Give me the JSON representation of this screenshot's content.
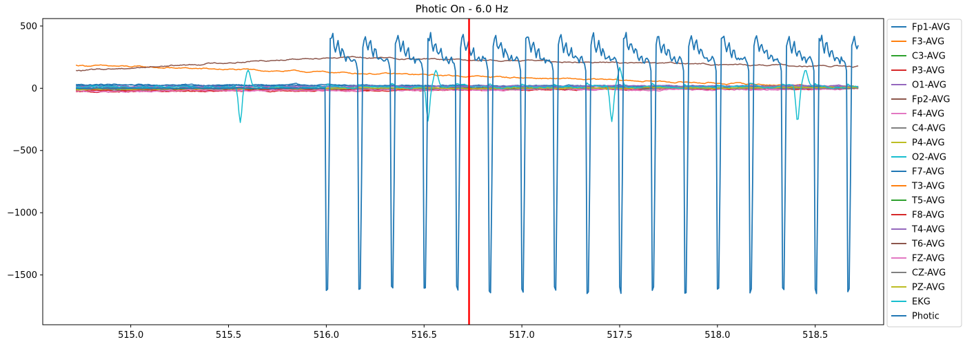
{
  "chart_data": {
    "type": "line",
    "title": "Photic On - 6.0 Hz",
    "xlabel": "",
    "ylabel": "",
    "xlim": [
      514.55,
      518.85
    ],
    "ylim": [
      -1900,
      560
    ],
    "x_ticks": [
      515.0,
      515.5,
      516.0,
      516.5,
      517.0,
      517.5,
      518.0,
      518.5
    ],
    "x_tick_labels": [
      "515.0",
      "515.5",
      "516.0",
      "516.5",
      "517.0",
      "517.5",
      "518.0",
      "518.5"
    ],
    "y_ticks": [
      500,
      0,
      -500,
      -1000,
      -1500
    ],
    "y_tick_labels": [
      "500",
      "0",
      "−500",
      "−1000",
      "−1500"
    ],
    "grid": false,
    "legend_placement": "outside-right",
    "marker_line": {
      "x": 516.73,
      "color": "#ff0000"
    },
    "x_start": 514.72,
    "x_end": 518.72,
    "photic_onset": 516.0,
    "photic_frequency_hz": 6.0,
    "series": [
      {
        "name": "Fp1-AVG",
        "color": "#1f77b4",
        "baseline": 30,
        "drift": -20,
        "noise": 8
      },
      {
        "name": "F3-AVG",
        "color": "#ff7f0e",
        "baseline": 185,
        "drift": -175,
        "noise": 8
      },
      {
        "name": "C3-AVG",
        "color": "#2ca02c",
        "baseline": -10,
        "drift": 10,
        "noise": 6
      },
      {
        "name": "P3-AVG",
        "color": "#d62728",
        "baseline": -30,
        "drift": 30,
        "noise": 6
      },
      {
        "name": "O1-AVG",
        "color": "#9467bd",
        "baseline": 15,
        "drift": 5,
        "noise": 7
      },
      {
        "name": "Fp2-AVG",
        "color": "#8c564b",
        "baseline": 140,
        "drift": 0,
        "noise": 8,
        "peak": 250,
        "peak_x": 516.0
      },
      {
        "name": "F4-AVG",
        "color": "#e377c2",
        "baseline": -20,
        "drift": 10,
        "noise": 8
      },
      {
        "name": "C4-AVG",
        "color": "#7f7f7f",
        "baseline": -15,
        "drift": 20,
        "noise": 5
      },
      {
        "name": "P4-AVG",
        "color": "#bcbd22",
        "baseline": -10,
        "drift": 15,
        "noise": 5
      },
      {
        "name": "O2-AVG",
        "color": "#17becf",
        "baseline": 5,
        "drift": 5,
        "noise": 10
      },
      {
        "name": "F7-AVG",
        "color": "#1f77b4",
        "baseline": 25,
        "drift": -10,
        "noise": 6
      },
      {
        "name": "T3-AVG",
        "color": "#ff7f0e",
        "baseline": -5,
        "drift": 10,
        "noise": 6
      },
      {
        "name": "T5-AVG",
        "color": "#2ca02c",
        "baseline": -5,
        "drift": 5,
        "noise": 5
      },
      {
        "name": "F8-AVG",
        "color": "#d62728",
        "baseline": -20,
        "drift": 20,
        "noise": 6
      },
      {
        "name": "T4-AVG",
        "color": "#9467bd",
        "baseline": 10,
        "drift": 10,
        "noise": 6
      },
      {
        "name": "T6-AVG",
        "color": "#8c564b",
        "baseline": 0,
        "drift": 0,
        "noise": 5
      },
      {
        "name": "FZ-AVG",
        "color": "#e377c2",
        "baseline": -25,
        "drift": 25,
        "noise": 7
      },
      {
        "name": "CZ-AVG",
        "color": "#7f7f7f",
        "baseline": -5,
        "drift": 5,
        "noise": 5
      },
      {
        "name": "PZ-AVG",
        "color": "#bcbd22",
        "baseline": -5,
        "drift": 10,
        "noise": 5
      },
      {
        "name": "EKG",
        "color": "#17becf",
        "baseline": 10,
        "drift": 0,
        "noise": 12,
        "spikes": [
          515.56,
          516.52,
          517.46,
          518.41
        ],
        "spike_depth": -290
      },
      {
        "name": "Photic",
        "color": "#1f77b4",
        "baseline": 0,
        "drift": 0,
        "noise": 3,
        "pulses": true,
        "pulse_min": -1620,
        "pulse_max": 400,
        "pulse_plateau": 230
      }
    ]
  }
}
